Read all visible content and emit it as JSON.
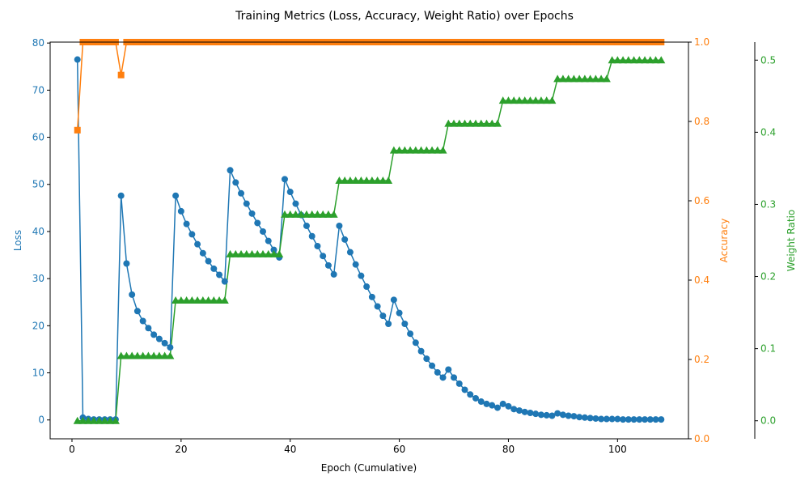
{
  "chart_data": {
    "type": "line",
    "title": "Training Metrics (Loss, Accuracy, Weight Ratio) over Epochs",
    "xlabel": "Epoch (Cumulative)",
    "xlim": [
      -4,
      113
    ],
    "xticks": [
      0,
      20,
      40,
      60,
      80,
      100
    ],
    "x": [
      1,
      2,
      3,
      4,
      5,
      6,
      7,
      8,
      9,
      10,
      11,
      12,
      13,
      14,
      15,
      16,
      17,
      18,
      19,
      20,
      21,
      22,
      23,
      24,
      25,
      26,
      27,
      28,
      29,
      30,
      31,
      32,
      33,
      34,
      35,
      36,
      37,
      38,
      39,
      40,
      41,
      42,
      43,
      44,
      45,
      46,
      47,
      48,
      49,
      50,
      51,
      52,
      53,
      54,
      55,
      56,
      57,
      58,
      59,
      60,
      61,
      62,
      63,
      64,
      65,
      66,
      67,
      68,
      69,
      70,
      71,
      72,
      73,
      74,
      75,
      76,
      77,
      78,
      79,
      80,
      81,
      82,
      83,
      84,
      85,
      86,
      87,
      88,
      89,
      90,
      91,
      92,
      93,
      94,
      95,
      96,
      97,
      98,
      99,
      100,
      101,
      102,
      103,
      104,
      105,
      106,
      107,
      108
    ],
    "axes": [
      {
        "label": "Loss",
        "side": "left",
        "color": "#1f77b4",
        "ylim": [
          -4,
          80.2
        ],
        "ticks": [
          0,
          10,
          20,
          30,
          40,
          50,
          60,
          70,
          80
        ]
      },
      {
        "label": "Accuracy",
        "side": "right",
        "color": "#ff7f0e",
        "ylim": [
          0,
          1.0
        ],
        "ticks": [
          "0.0",
          "0.2",
          "0.4",
          "0.6",
          "0.8",
          "1.0"
        ]
      },
      {
        "label": "Weight Ratio",
        "side": "right-offset",
        "color": "#2ca02c",
        "ylim": [
          -0.025,
          0.525
        ],
        "ticks": [
          "0.0",
          "0.1",
          "0.2",
          "0.3",
          "0.4",
          "0.5"
        ]
      }
    ],
    "series": [
      {
        "axis": 0,
        "color": "#1f77b4",
        "marker": "circle",
        "values": [
          76.5,
          0.5,
          0.2,
          0.1,
          0.1,
          0.1,
          0.1,
          0.1,
          47.6,
          33.2,
          26.6,
          23.1,
          21.0,
          19.5,
          18.1,
          17.2,
          16.3,
          15.4,
          47.6,
          44.3,
          41.6,
          39.4,
          37.3,
          35.4,
          33.7,
          32.1,
          30.8,
          29.4,
          53.0,
          50.4,
          48.1,
          45.9,
          43.8,
          41.8,
          40.0,
          38.0,
          36.1,
          34.5,
          51.1,
          48.4,
          45.9,
          43.5,
          41.2,
          39.0,
          36.9,
          34.8,
          32.8,
          30.9,
          41.2,
          38.3,
          35.6,
          33.0,
          30.6,
          28.3,
          26.1,
          24.1,
          22.1,
          20.4,
          25.5,
          22.7,
          20.4,
          18.3,
          16.4,
          14.6,
          13.0,
          11.5,
          10.1,
          9.0,
          10.7,
          9.0,
          7.7,
          6.4,
          5.4,
          4.6,
          3.9,
          3.4,
          3.1,
          2.6,
          3.4,
          2.9,
          2.3,
          2.0,
          1.7,
          1.5,
          1.3,
          1.1,
          1.0,
          0.9,
          1.4,
          1.1,
          0.9,
          0.8,
          0.6,
          0.5,
          0.4,
          0.3,
          0.2,
          0.2,
          0.2,
          0.2,
          0.1,
          0.1,
          0.1,
          0.1,
          0.1,
          0.1,
          0.1,
          0.1
        ]
      },
      {
        "axis": 1,
        "color": "#ff7f0e",
        "marker": "square",
        "values": [
          0.778,
          1.0,
          1.0,
          1.0,
          1.0,
          1.0,
          1.0,
          1.0,
          0.917,
          1.0,
          1.0,
          1.0,
          1.0,
          1.0,
          1.0,
          1.0,
          1.0,
          1.0,
          1.0,
          1.0,
          1.0,
          1.0,
          1.0,
          1.0,
          1.0,
          1.0,
          1.0,
          1.0,
          1.0,
          1.0,
          1.0,
          1.0,
          1.0,
          1.0,
          1.0,
          1.0,
          1.0,
          1.0,
          1.0,
          1.0,
          1.0,
          1.0,
          1.0,
          1.0,
          1.0,
          1.0,
          1.0,
          1.0,
          1.0,
          1.0,
          1.0,
          1.0,
          1.0,
          1.0,
          1.0,
          1.0,
          1.0,
          1.0,
          1.0,
          1.0,
          1.0,
          1.0,
          1.0,
          1.0,
          1.0,
          1.0,
          1.0,
          1.0,
          1.0,
          1.0,
          1.0,
          1.0,
          1.0,
          1.0,
          1.0,
          1.0,
          1.0,
          1.0,
          1.0,
          1.0,
          1.0,
          1.0,
          1.0,
          1.0,
          1.0,
          1.0,
          1.0,
          1.0,
          1.0,
          1.0,
          1.0,
          1.0,
          1.0,
          1.0,
          1.0,
          1.0,
          1.0,
          1.0,
          1.0,
          1.0,
          1.0,
          1.0,
          1.0,
          1.0,
          1.0,
          1.0,
          1.0,
          1.0
        ]
      },
      {
        "axis": 2,
        "color": "#2ca02c",
        "marker": "triangle",
        "values": [
          0.0,
          0.0,
          0.0,
          0.0,
          0.0,
          0.0,
          0.0,
          0.0,
          0.09,
          0.09,
          0.09,
          0.09,
          0.09,
          0.09,
          0.09,
          0.09,
          0.09,
          0.09,
          0.167,
          0.167,
          0.167,
          0.167,
          0.167,
          0.167,
          0.167,
          0.167,
          0.167,
          0.167,
          0.231,
          0.231,
          0.231,
          0.231,
          0.231,
          0.231,
          0.231,
          0.231,
          0.231,
          0.231,
          0.286,
          0.286,
          0.286,
          0.286,
          0.286,
          0.286,
          0.286,
          0.286,
          0.286,
          0.286,
          0.333,
          0.333,
          0.333,
          0.333,
          0.333,
          0.333,
          0.333,
          0.333,
          0.333,
          0.333,
          0.375,
          0.375,
          0.375,
          0.375,
          0.375,
          0.375,
          0.375,
          0.375,
          0.375,
          0.375,
          0.412,
          0.412,
          0.412,
          0.412,
          0.412,
          0.412,
          0.412,
          0.412,
          0.412,
          0.412,
          0.444,
          0.444,
          0.444,
          0.444,
          0.444,
          0.444,
          0.444,
          0.444,
          0.444,
          0.444,
          0.474,
          0.474,
          0.474,
          0.474,
          0.474,
          0.474,
          0.474,
          0.474,
          0.474,
          0.474,
          0.5,
          0.5,
          0.5,
          0.5,
          0.5,
          0.5,
          0.5,
          0.5,
          0.5,
          0.5
        ]
      }
    ],
    "grid": false
  }
}
